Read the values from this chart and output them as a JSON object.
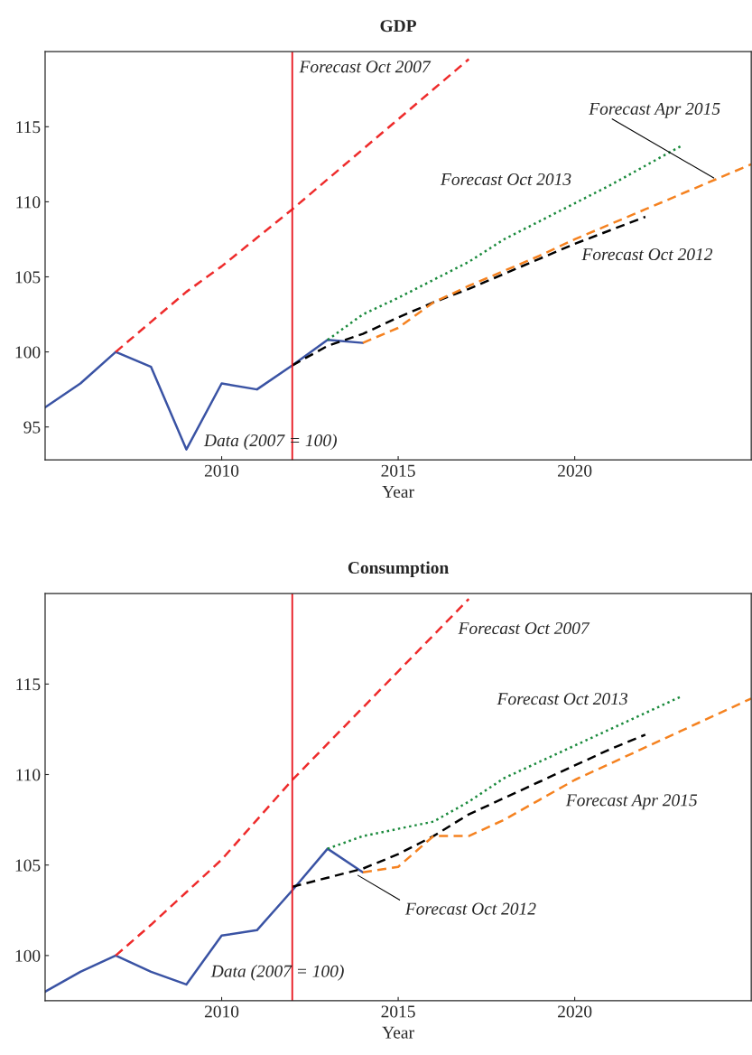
{
  "chart_data": [
    {
      "type": "line",
      "title": "GDP",
      "xlabel": "Year",
      "xlim": [
        2005,
        2025
      ],
      "ylim": [
        92.8,
        120
      ],
      "xticks": [
        2010,
        2015,
        2020
      ],
      "yticks": [
        95,
        100,
        105,
        110,
        115
      ],
      "grid": false,
      "legend": false,
      "series": [
        {
          "name": "Data (2007 = 100)",
          "color": "#3a53a4",
          "line_style": "solid",
          "x": [
            2005,
            2006,
            2007,
            2008,
            2009,
            2010,
            2011,
            2012,
            2013,
            2014
          ],
          "values": [
            96.3,
            97.9,
            100,
            99.0,
            93.5,
            97.9,
            97.5,
            99.1,
            100.8,
            100.6
          ]
        },
        {
          "name": "Forecast Oct 2007",
          "color": "#ee2b2b",
          "line_style": "dashed",
          "x": [
            2007,
            2008,
            2009,
            2010,
            2011,
            2012,
            2013,
            2014,
            2015,
            2016,
            2017
          ],
          "values": [
            100,
            102,
            104,
            105.7,
            107.6,
            109.5,
            111.5,
            113.5,
            115.5,
            117.5,
            119.5
          ]
        },
        {
          "name": "Forecast Oct 2012",
          "color": "#000000",
          "line_style": "dashed",
          "x": [
            2012,
            2013,
            2014,
            2015,
            2016,
            2017,
            2018,
            2019,
            2020,
            2021,
            2022
          ],
          "values": [
            99.1,
            100.4,
            101.2,
            102.3,
            103.3,
            104.2,
            105.2,
            106.2,
            107.2,
            108.1,
            109.0
          ]
        },
        {
          "name": "Forecast Oct 2013",
          "color": "#1a8a3c",
          "line_style": "dotted",
          "x": [
            2013,
            2014,
            2015,
            2016,
            2017,
            2018,
            2019,
            2020,
            2021,
            2022,
            2023
          ],
          "values": [
            100.8,
            102.5,
            103.6,
            104.8,
            106.0,
            107.5,
            108.7,
            109.9,
            111.1,
            112.4,
            113.7
          ]
        },
        {
          "name": "Forecast Apr 2015",
          "color": "#f58220",
          "line_style": "dashed",
          "x": [
            2014,
            2015,
            2016,
            2017,
            2018,
            2019,
            2020,
            2021,
            2022,
            2023,
            2024,
            2025
          ],
          "values": [
            100.6,
            101.6,
            103.3,
            104.4,
            105.4,
            106.4,
            107.5,
            108.5,
            109.5,
            110.5,
            111.5,
            112.5
          ]
        }
      ],
      "ref_lines": [
        {
          "axis": "x",
          "value": 2012,
          "color": "#e8141c"
        }
      ]
    },
    {
      "type": "line",
      "title": "Consumption",
      "xlabel": "Year",
      "xlim": [
        2005,
        2025
      ],
      "ylim": [
        97.5,
        120
      ],
      "xticks": [
        2010,
        2015,
        2020
      ],
      "yticks": [
        100,
        105,
        110,
        115
      ],
      "grid": false,
      "legend": false,
      "series": [
        {
          "name": "Data (2007 = 100)",
          "color": "#3a53a4",
          "line_style": "solid",
          "x": [
            2005,
            2006,
            2007,
            2008,
            2009,
            2010,
            2011,
            2012,
            2013,
            2014
          ],
          "values": [
            98.0,
            99.1,
            100,
            99.1,
            98.4,
            101.1,
            101.4,
            103.6,
            105.9,
            104.6
          ]
        },
        {
          "name": "Forecast Oct 2007",
          "color": "#ee2b2b",
          "line_style": "dashed",
          "x": [
            2007,
            2008,
            2009,
            2010,
            2011,
            2012,
            2013,
            2014,
            2015,
            2016,
            2017
          ],
          "values": [
            100,
            101.7,
            103.5,
            105.3,
            107.5,
            109.7,
            111.7,
            113.7,
            115.7,
            117.7,
            119.7
          ]
        },
        {
          "name": "Forecast Oct 2012",
          "color": "#000000",
          "line_style": "dashed",
          "x": [
            2012,
            2013,
            2014,
            2015,
            2016,
            2017,
            2018,
            2019,
            2020,
            2021,
            2022
          ],
          "values": [
            103.8,
            104.3,
            104.8,
            105.6,
            106.6,
            107.8,
            108.7,
            109.6,
            110.5,
            111.4,
            112.2
          ]
        },
        {
          "name": "Forecast Oct 2013",
          "color": "#1a8a3c",
          "line_style": "dotted",
          "x": [
            2013,
            2014,
            2015,
            2016,
            2017,
            2018,
            2019,
            2020,
            2021,
            2022,
            2023
          ],
          "values": [
            105.9,
            106.6,
            107.0,
            107.4,
            108.5,
            109.8,
            110.7,
            111.6,
            112.5,
            113.4,
            114.3
          ]
        },
        {
          "name": "Forecast Apr 2015",
          "color": "#f58220",
          "line_style": "dashed",
          "x": [
            2014,
            2015,
            2016,
            2017,
            2018,
            2019,
            2020,
            2021,
            2022,
            2023,
            2024,
            2025
          ],
          "values": [
            104.6,
            104.9,
            106.6,
            106.6,
            107.5,
            108.6,
            109.7,
            110.6,
            111.5,
            112.4,
            113.3,
            114.2
          ]
        }
      ],
      "ref_lines": [
        {
          "axis": "x",
          "value": 2012,
          "color": "#e8141c"
        }
      ]
    }
  ]
}
